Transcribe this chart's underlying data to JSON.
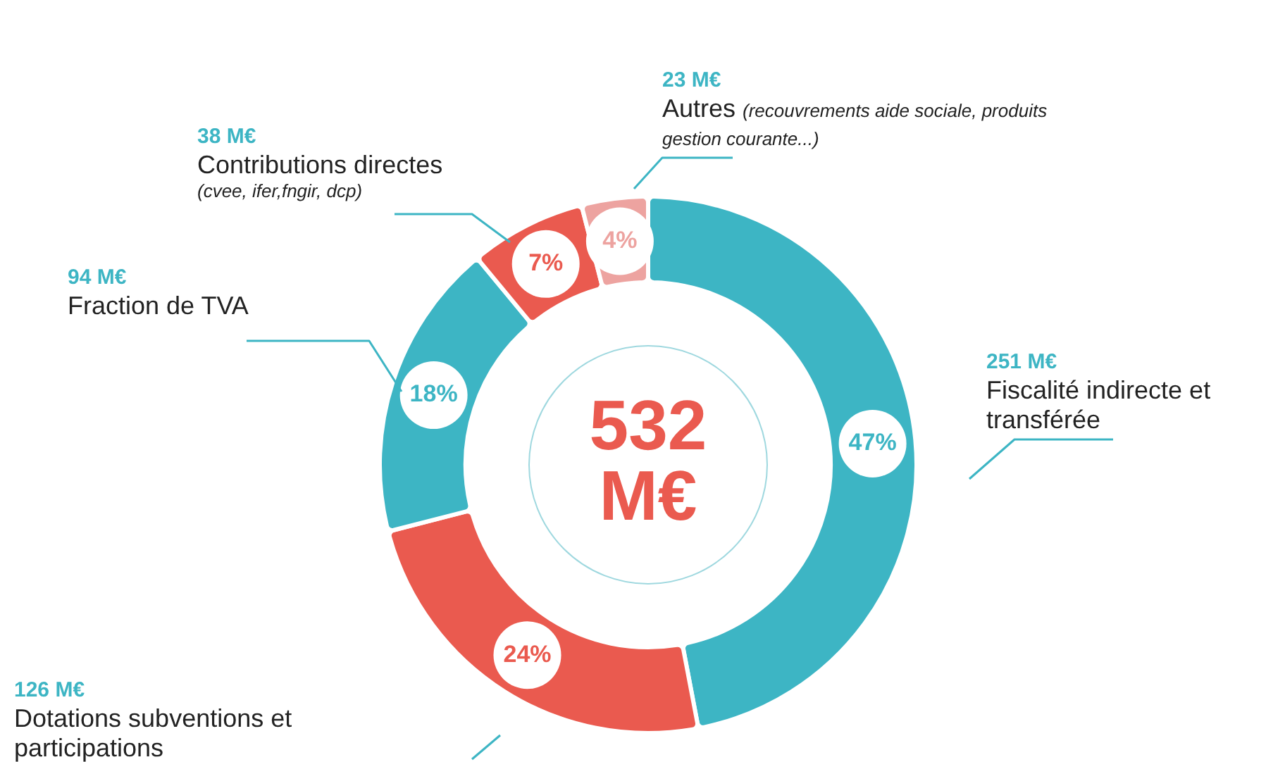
{
  "chart_data": {
    "type": "donut",
    "categories": [
      "Fiscalité indirecte et transférée",
      "Dotations subventions et participations",
      "Fraction de TVA",
      "Contributions directes",
      "Autres"
    ],
    "values": [
      47,
      24,
      18,
      7,
      4
    ],
    "colors": [
      "#3db5c4",
      "#ea5a4f",
      "#3db5c4",
      "#ea5a4f",
      "#eda3a0"
    ],
    "value_labels": [
      "47%",
      "24%",
      "18%",
      "7%",
      "4%"
    ],
    "annotations": [
      "532 M€",
      {
        "text": "251 M€",
        "x": "Fiscalité indirecte et transférée"
      },
      {
        "text": "126 M€",
        "x": "Dotations subventions et participations"
      },
      {
        "text": "94 M€",
        "x": "Fraction de TVA"
      },
      {
        "text": "38 M€",
        "x": "Contributions directes"
      },
      {
        "text": "(cvee, ifer,fngir, dcp)",
        "x": "Contributions directes"
      },
      {
        "text": "23 M€",
        "x": "Autres"
      },
      {
        "text": "(recouvrements aide sociale, produits gestion courante...)",
        "x": "Autres"
      }
    ]
  }
}
